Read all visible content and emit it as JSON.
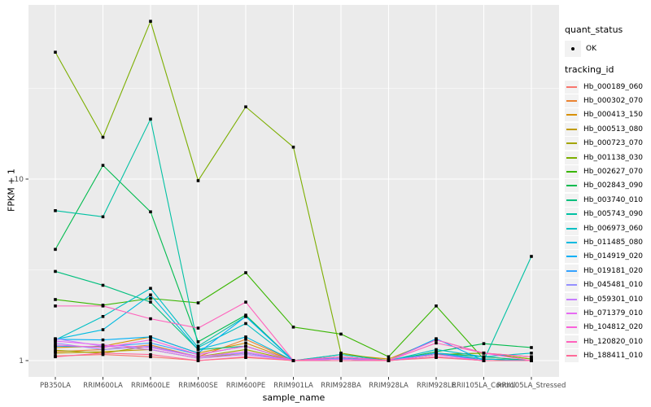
{
  "figure": {
    "background": "#FFFFFF",
    "panel_background": "#EBEBEB",
    "grid_color": "#FFFFFF",
    "axis_text_color": "#4D4D4D",
    "axis_tick_color": "#333333",
    "point_color": "#000000"
  },
  "chart_data": {
    "type": "line",
    "title": "",
    "xlabel": "sample_name",
    "ylabel": "FPKM + 1",
    "y_scale": "log10",
    "y_axis_ticks": [
      1,
      10
    ],
    "y_minor_gridlines": [
      3.162,
      31.62
    ],
    "ylim": [
      0.93,
      89
    ],
    "grid": true,
    "legend_position": "right",
    "categories": [
      "PB350LA",
      "RRIM600LA",
      "RRIM600LE",
      "RRIM600SE",
      "RRIM600PE",
      "RRIM901LA",
      "RRIM928BA",
      "RRIM928LA",
      "RRIM928LE",
      "RRII105LA_Control",
      "RRII105LA_Stressed"
    ],
    "series": [
      {
        "name": "Hb_000189_060",
        "color": "#F8766D",
        "values": [
          1.06,
          1.08,
          1.05,
          1.0,
          1.04,
          1.0,
          1.02,
          1.0,
          1.04,
          1.0,
          1.0
        ]
      },
      {
        "name": "Hb_000302_070",
        "color": "#EA8331",
        "values": [
          1.12,
          1.15,
          1.22,
          1.05,
          1.31,
          1.0,
          1.05,
          1.0,
          1.1,
          1.05,
          1.0
        ]
      },
      {
        "name": "Hb_000413_150",
        "color": "#D89000",
        "values": [
          1.18,
          1.2,
          1.35,
          1.1,
          1.25,
          1.0,
          1.08,
          1.02,
          1.3,
          1.1,
          1.05
        ]
      },
      {
        "name": "Hb_000513_080",
        "color": "#C09B00",
        "values": [
          1.1,
          1.12,
          1.15,
          1.03,
          1.1,
          1.0,
          1.03,
          1.0,
          1.08,
          1.02,
          1.0
        ]
      },
      {
        "name": "Hb_000723_070",
        "color": "#A3A500",
        "values": [
          1.14,
          1.1,
          1.2,
          1.05,
          1.15,
          1.0,
          1.05,
          1.0,
          1.08,
          1.1,
          1.02
        ]
      },
      {
        "name": "Hb_001138_030",
        "color": "#7CAE00",
        "values": [
          50,
          17,
          74,
          9.8,
          25,
          15,
          1.1,
          1.0,
          1.08,
          1.1,
          1.02
        ]
      },
      {
        "name": "Hb_002627_070",
        "color": "#39B600",
        "values": [
          2.17,
          2.02,
          2.2,
          2.08,
          3.05,
          1.53,
          1.4,
          1.05,
          2.0,
          1.02,
          1.0
        ]
      },
      {
        "name": "Hb_002843_090",
        "color": "#00BB4E",
        "values": [
          4.1,
          11.9,
          6.6,
          1.27,
          1.78,
          1.0,
          1.02,
          1.0,
          1.12,
          1.24,
          1.18
        ]
      },
      {
        "name": "Hb_003740_010",
        "color": "#00BF7D",
        "values": [
          3.1,
          2.6,
          2.1,
          1.15,
          1.2,
          1.0,
          1.05,
          1.0,
          1.1,
          1.05,
          1.0
        ]
      },
      {
        "name": "Hb_005743_090",
        "color": "#00C1A3",
        "values": [
          6.7,
          6.2,
          21.4,
          1.2,
          1.75,
          1.0,
          1.05,
          1.0,
          1.1,
          1.0,
          3.75
        ]
      },
      {
        "name": "Hb_006973_060",
        "color": "#00BFC4",
        "values": [
          1.3,
          1.75,
          2.5,
          1.18,
          1.6,
          1.0,
          1.08,
          1.0,
          1.15,
          1.05,
          1.1
        ]
      },
      {
        "name": "Hb_011485_080",
        "color": "#00BAE0",
        "values": [
          1.31,
          1.48,
          2.3,
          1.15,
          1.35,
          1.0,
          1.05,
          1.0,
          1.1,
          1.02,
          1.0
        ]
      },
      {
        "name": "Hb_014919_020",
        "color": "#00B0F6",
        "values": [
          1.31,
          1.3,
          1.35,
          1.1,
          1.75,
          1.0,
          1.05,
          1.0,
          1.32,
          1.0,
          1.0
        ]
      },
      {
        "name": "Hb_019181_020",
        "color": "#35A2FF",
        "values": [
          1.2,
          1.19,
          1.25,
          1.08,
          1.2,
          1.0,
          1.03,
          1.0,
          1.1,
          1.0,
          1.0
        ]
      },
      {
        "name": "Hb_045481_010",
        "color": "#9590FF",
        "values": [
          1.25,
          1.15,
          1.2,
          1.05,
          1.1,
          1.0,
          1.02,
          1.0,
          1.05,
          1.0,
          1.0
        ]
      },
      {
        "name": "Hb_059301_010",
        "color": "#C77CFF",
        "values": [
          1.32,
          1.2,
          1.15,
          1.03,
          1.08,
          1.0,
          1.0,
          1.0,
          1.05,
          1.0,
          1.0
        ]
      },
      {
        "name": "Hb_071379_010",
        "color": "#E76BF3",
        "values": [
          1.28,
          1.22,
          1.18,
          1.05,
          1.12,
          1.0,
          1.02,
          1.0,
          1.08,
          1.0,
          1.0
        ]
      },
      {
        "name": "Hb_104812_020",
        "color": "#FA62DB",
        "values": [
          1.22,
          1.18,
          1.3,
          1.08,
          1.2,
          1.0,
          1.05,
          1.0,
          1.3,
          1.1,
          1.0
        ]
      },
      {
        "name": "Hb_120820_010",
        "color": "#FF62BC",
        "values": [
          2.0,
          2.0,
          1.7,
          1.51,
          2.1,
          1.0,
          1.05,
          1.0,
          1.25,
          1.1,
          1.05
        ]
      },
      {
        "name": "Hb_188411_010",
        "color": "#FF6A98",
        "values": [
          1.05,
          1.1,
          1.08,
          1.0,
          1.05,
          1.0,
          1.0,
          1.0,
          1.05,
          1.0,
          1.0
        ]
      }
    ],
    "legend": {
      "quant_status": {
        "title": "quant_status",
        "items": [
          {
            "label": "OK",
            "marker": "point"
          }
        ]
      },
      "tracking_id_title": "tracking_id"
    }
  }
}
